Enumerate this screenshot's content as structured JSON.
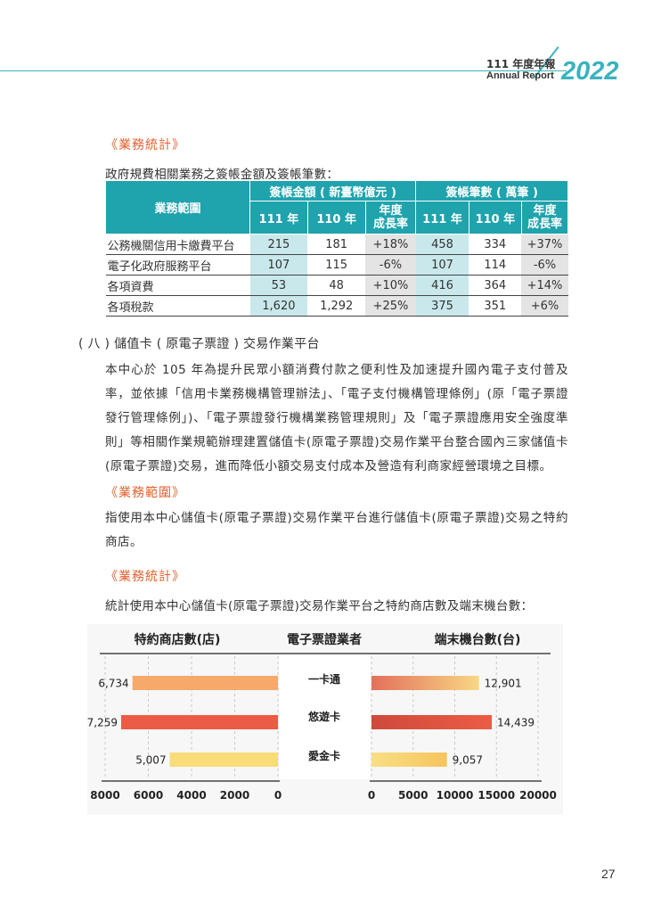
{
  "header": {
    "line1": "111 年度年報",
    "line2": "Annual Report",
    "year": "2022"
  },
  "section1": {
    "title": "《業務統計》",
    "intro": "政府規費相關業務之簽帳金額及簽帳筆數："
  },
  "table": {
    "scope_header": "業務範圍",
    "amount_header": "簽帳金額 ( 新臺幣億元 )",
    "count_header": "簽帳筆數 ( 萬筆 )",
    "sub": {
      "y111": "111 年",
      "y110": "110 年",
      "growth_line1": "年度",
      "growth_line2": "成長率"
    },
    "rows": [
      {
        "label": "公務機關信用卡繳費平台",
        "a111": "215",
        "a110": "181",
        "ag": "+18%",
        "c111": "458",
        "c110": "334",
        "cg": "+37%"
      },
      {
        "label": "電子化政府服務平台",
        "a111": "107",
        "a110": "115",
        "ag": "-6%",
        "c111": "107",
        "c110": "114",
        "cg": "-6%"
      },
      {
        "label": "各項資費",
        "a111": "53",
        "a110": "48",
        "ag": "+10%",
        "c111": "416",
        "c110": "364",
        "cg": "+14%"
      },
      {
        "label": "各項稅款",
        "a111": "1,620",
        "a110": "1,292",
        "ag": "+25%",
        "c111": "375",
        "c110": "351",
        "cg": "+6%"
      }
    ]
  },
  "section8": {
    "heading": "( 八 ) 儲值卡 ( 原電子票證 ) 交易作業平台",
    "body": "本中心於 105 年為提升民眾小額消費付款之便利性及加速提升國內電子支付普及率，並依據「信用卡業務機構管理辦法」、「電子支付機構管理條例」(原「電子票證發行管理條例」)、「電子票證發行機構業務管理規則」及「電子票證應用安全強度準則」等相關作業規範辦理建置儲值卡(原電子票證)交易作業平台整合國內三家儲值卡(原電子票證)交易，進而降低小額交易支付成本及營造有利商家經營環境之目標。"
  },
  "section_scope": {
    "title": "《業務範圍》",
    "body": "指使用本中心儲值卡(原電子票證)交易作業平台進行儲值卡(原電子票證)交易之特約商店。"
  },
  "section2": {
    "title": "《業務統計》",
    "intro": "統計使用本中心儲值卡(原電子票證)交易作業平台之特約商店數及端末機台數："
  },
  "chart_data": {
    "type": "bar",
    "orientation": "horizontal-butterfly",
    "titles": {
      "left": "特約商店數(店)",
      "center": "電子票證業者",
      "right": "端末機台數(台)"
    },
    "categories": [
      "一卡通",
      "悠遊卡",
      "愛金卡"
    ],
    "series": [
      {
        "name": "特約商店數(店)",
        "values": [
          6734,
          7259,
          5007
        ],
        "labels": [
          "6,734",
          "7,259",
          "5,007"
        ]
      },
      {
        "name": "端末機台數(台)",
        "values": [
          12901,
          14439,
          9057
        ],
        "labels": [
          "12,901",
          "14,439",
          "9,057"
        ]
      }
    ],
    "left_axis": {
      "ticks": [
        8000,
        6000,
        4000,
        2000,
        0
      ],
      "range": [
        0,
        8000
      ]
    },
    "right_axis": {
      "ticks": [
        0,
        5000,
        10000,
        15000,
        20000
      ],
      "range": [
        0,
        20000
      ]
    },
    "grid": true,
    "colors": {
      "left": [
        "#f6a96a",
        "#ec5b45",
        "#f8dc78"
      ],
      "right_start": [
        "#e2705a",
        "#ce4a3c",
        "#f8df85"
      ],
      "right_end": [
        "#f9d785",
        "#ec5c45",
        "#f6c45e"
      ]
    }
  },
  "page": {
    "number": "27"
  }
}
